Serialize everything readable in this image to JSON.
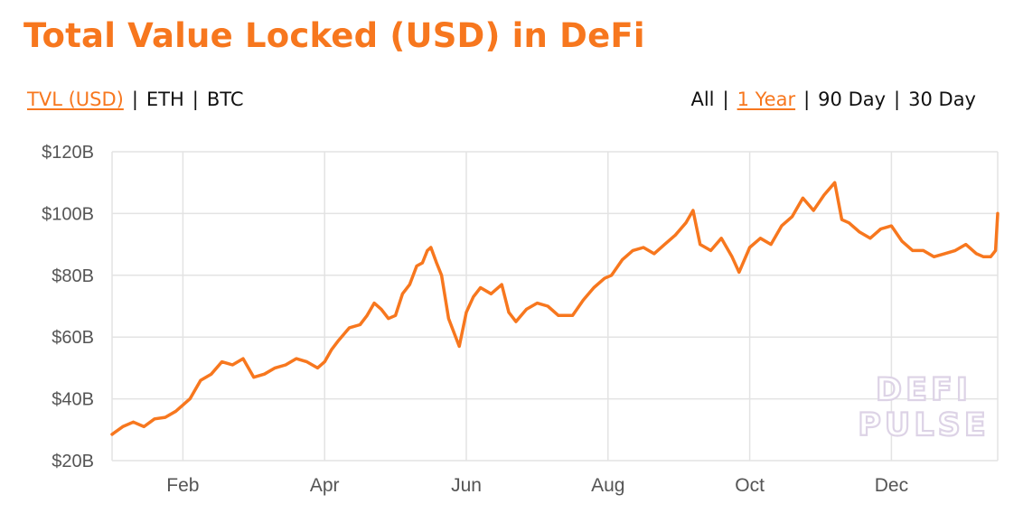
{
  "header": {
    "title": "Total Value Locked (USD) in DeFi"
  },
  "metric_toggle": [
    {
      "label": "TVL (USD)",
      "active": true
    },
    {
      "label": "ETH",
      "active": false
    },
    {
      "label": "BTC",
      "active": false
    }
  ],
  "range_toggle": [
    {
      "label": "All",
      "active": false
    },
    {
      "label": "1 Year",
      "active": true
    },
    {
      "label": "90 Day",
      "active": false
    },
    {
      "label": "30 Day",
      "active": false
    }
  ],
  "separator": "|",
  "watermark": {
    "line1": "DEFI",
    "line2": "PULSE"
  },
  "colors": {
    "accent": "#f7771e",
    "grid": "#e3e3e3",
    "tick_text": "#555555"
  },
  "chart_data": {
    "type": "line",
    "title": "Total Value Locked (USD) in DeFi",
    "xlabel": "",
    "ylabel": "",
    "grid": true,
    "ylim": [
      20,
      120
    ],
    "yticks": [
      20,
      40,
      60,
      80,
      100,
      120
    ],
    "ytick_labels": [
      "$20B",
      "$40B",
      "$60B",
      "$80B",
      "$100B",
      "$120B"
    ],
    "xlim": [
      0,
      12.5
    ],
    "xticks": [
      {
        "label": "Feb",
        "x": 1.0
      },
      {
        "label": "Apr",
        "x": 3.0
      },
      {
        "label": "Jun",
        "x": 5.0
      },
      {
        "label": "Aug",
        "x": 7.0
      },
      {
        "label": "Oct",
        "x": 9.0
      },
      {
        "label": "Dec",
        "x": 11.0
      }
    ],
    "series": [
      {
        "color": "#f7771e",
        "x": [
          0,
          0.15,
          0.3,
          0.45,
          0.6,
          0.75,
          0.9,
          1.0,
          1.1,
          1.25,
          1.4,
          1.55,
          1.7,
          1.85,
          2.0,
          2.15,
          2.3,
          2.45,
          2.6,
          2.75,
          2.9,
          3.0,
          3.1,
          3.2,
          3.35,
          3.5,
          3.6,
          3.7,
          3.8,
          3.9,
          4.0,
          4.1,
          4.2,
          4.3,
          4.38,
          4.45,
          4.5,
          4.58,
          4.65,
          4.75,
          4.9,
          5.0,
          5.1,
          5.2,
          5.35,
          5.5,
          5.6,
          5.7,
          5.85,
          6.0,
          6.15,
          6.3,
          6.5,
          6.65,
          6.8,
          6.95,
          7.05,
          7.2,
          7.35,
          7.5,
          7.65,
          7.8,
          7.95,
          8.1,
          8.2,
          8.3,
          8.45,
          8.6,
          8.75,
          8.85,
          9.0,
          9.15,
          9.3,
          9.45,
          9.6,
          9.75,
          9.9,
          10.05,
          10.2,
          10.3,
          10.4,
          10.55,
          10.7,
          10.85,
          11.0,
          11.15,
          11.3,
          11.45,
          11.6,
          11.75,
          11.9,
          12.05,
          12.2,
          12.3,
          12.4,
          12.47,
          12.5
        ],
        "y": [
          28.5,
          31,
          32.5,
          31,
          33.5,
          34,
          36,
          38,
          40,
          46,
          48,
          52,
          51,
          53,
          47,
          48,
          50,
          51,
          53,
          52,
          50,
          52,
          56,
          59,
          63,
          64,
          67,
          71,
          69,
          66,
          67,
          74,
          77,
          83,
          84,
          88,
          89,
          84,
          80,
          66,
          57,
          68,
          73,
          76,
          74,
          77,
          68,
          65,
          69,
          71,
          70,
          67,
          67,
          72,
          76,
          79,
          80,
          85,
          88,
          89,
          87,
          90,
          93,
          97,
          101,
          90,
          88,
          92,
          86,
          81,
          89,
          92,
          90,
          96,
          99,
          105,
          101,
          106,
          110,
          98,
          97,
          94,
          92,
          95,
          96,
          91,
          88,
          88,
          86,
          87,
          88,
          90,
          87,
          86,
          86,
          88,
          100
        ]
      }
    ]
  }
}
